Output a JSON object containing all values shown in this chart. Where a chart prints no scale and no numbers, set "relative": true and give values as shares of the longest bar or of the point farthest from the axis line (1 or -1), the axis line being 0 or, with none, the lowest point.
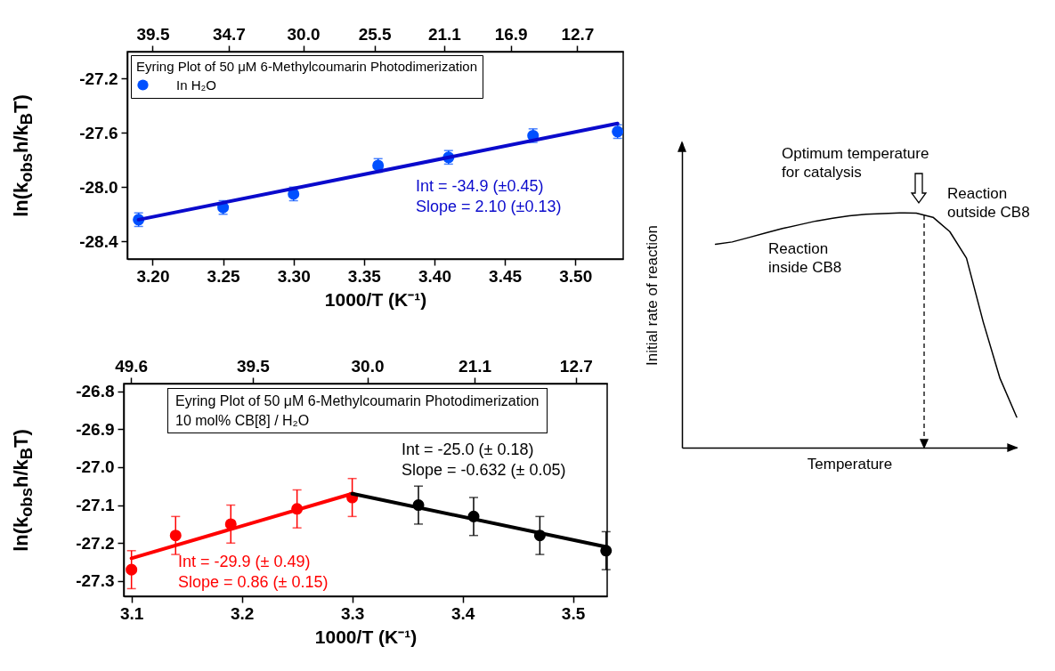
{
  "chart_data": [
    {
      "type": "scatter",
      "legend_title": "Eyring Plot of 50 μM 6-Methylcoumarin Photodimerization",
      "xlabel": "1000/T (K⁻¹)",
      "ylabel": "ln(k$_{obs}$h/k$_{B}$T)",
      "legend": "top left",
      "xlim": [
        3.182,
        3.534
      ],
      "xticks": [
        {
          "value": 3.2,
          "label": "3.20"
        },
        3.25,
        {
          "value": 3.3,
          "label": "3.30"
        },
        3.35,
        {
          "value": 3.4,
          "label": "3.40"
        },
        3.45,
        {
          "value": 3.5,
          "label": "3.50"
        }
      ],
      "x2lim": [
        41.1,
        9.8
      ],
      "x2ticks": [
        39.5,
        34.7,
        {
          "value": 30,
          "label": "30.0"
        },
        25.5,
        21.1,
        16.9,
        12.7
      ],
      "ylim": [
        -28.53,
        -27.0
      ],
      "yticks": [
        -27.2,
        -27.6,
        {
          "value": -28.0,
          "label": "-28.0"
        },
        -28.4
      ],
      "series": [
        {
          "name": "In H₂O",
          "color": "#0050ff",
          "marker": "circle",
          "x": [
            3.19,
            3.25,
            3.3,
            3.36,
            3.41,
            3.47,
            3.53
          ],
          "values": [
            -28.24,
            -28.15,
            -28.05,
            -27.84,
            -27.78,
            -27.62,
            -27.59
          ],
          "errors": [
            0.05,
            0.05,
            0.05,
            0.05,
            0.05,
            0.05,
            0.05
          ]
        },
        {
          "type": "line",
          "color": "#0a0acc",
          "x": [
            3.19,
            3.53
          ],
          "values": [
            -28.24,
            -27.53
          ]
        }
      ],
      "annotations": [
        "Int = -34.9 (±0.45)\nSlope = 2.10 (±0.13)"
      ]
    },
    {
      "type": "scatter",
      "title": "Eyring Plot of 50 μM 6-Methylcoumarin Photodimerization",
      "subtitle": "10 mol% CB[8] / H₂O",
      "xlabel": "1000/T (K⁻¹)",
      "ylabel": "ln(k$_{obs}$h/k$_{B}$T)",
      "xlim": [
        3.093,
        3.531
      ],
      "xticks": [
        3.1,
        3.2,
        3.3,
        3.4,
        3.5
      ],
      "x2lim": [
        50.2,
        10.1
      ],
      "x2ticks": [
        49.6,
        39.5,
        {
          "value": 30,
          "label": "30.0"
        },
        21.1,
        12.7
      ],
      "ylim": [
        -27.34,
        -26.78
      ],
      "yticks": [
        -26.8,
        -26.9,
        {
          "value": -27.0,
          "label": "-27.0"
        },
        -27.1,
        -27.2,
        -27.3
      ],
      "series": [
        {
          "color": "#ff0000",
          "marker": "circle",
          "x": [
            3.1,
            3.14,
            3.19,
            3.25,
            3.3
          ],
          "values": [
            -27.27,
            -27.18,
            -27.15,
            -27.11,
            -27.08
          ],
          "errors": [
            0.05,
            0.05,
            0.05,
            0.05,
            0.05
          ]
        },
        {
          "color": "#000000",
          "marker": "circle",
          "x": [
            3.36,
            3.41,
            3.47,
            3.53
          ],
          "values": [
            -27.1,
            -27.13,
            -27.18,
            -27.22
          ],
          "errors": [
            0.05,
            0.05,
            0.05,
            0.05
          ]
        },
        {
          "type": "line",
          "color": "#ff0000",
          "x": [
            3.1,
            3.3
          ],
          "values": [
            -27.24,
            -27.07
          ]
        },
        {
          "type": "line",
          "color": "#000000",
          "x": [
            3.3,
            3.53
          ],
          "values": [
            -27.07,
            -27.21
          ]
        }
      ],
      "annotations": [
        "Int = -29.9 (± 0.49)\nSlope =  0.86 (± 0.15)",
        "Int = -25.0 (± 0.18)\nSlope =  -0.632 (± 0.05)"
      ]
    },
    {
      "type": "line",
      "relative": true,
      "xlabel": "Temperature",
      "ylabel": "Initial rate of reaction",
      "categories": [
        null,
        null,
        null,
        null,
        null,
        null,
        null,
        null,
        null,
        null,
        null,
        null,
        null,
        null,
        null,
        null,
        null,
        null,
        null
      ],
      "series": [
        {
          "color": "#000000",
          "values": [
            0.866,
            0.876,
            0.895,
            0.914,
            0.933,
            0.949,
            0.965,
            0.977,
            0.987,
            0.994,
            0.997,
            1.0,
            0.999,
            0.981,
            0.92,
            0.807,
            0.535,
            0.295,
            0.13
          ]
        }
      ],
      "annotations": [
        "Optimum temperature\nfor catalysis",
        "Reaction\ninside CB8",
        "Reaction\noutside CB8"
      ]
    }
  ]
}
